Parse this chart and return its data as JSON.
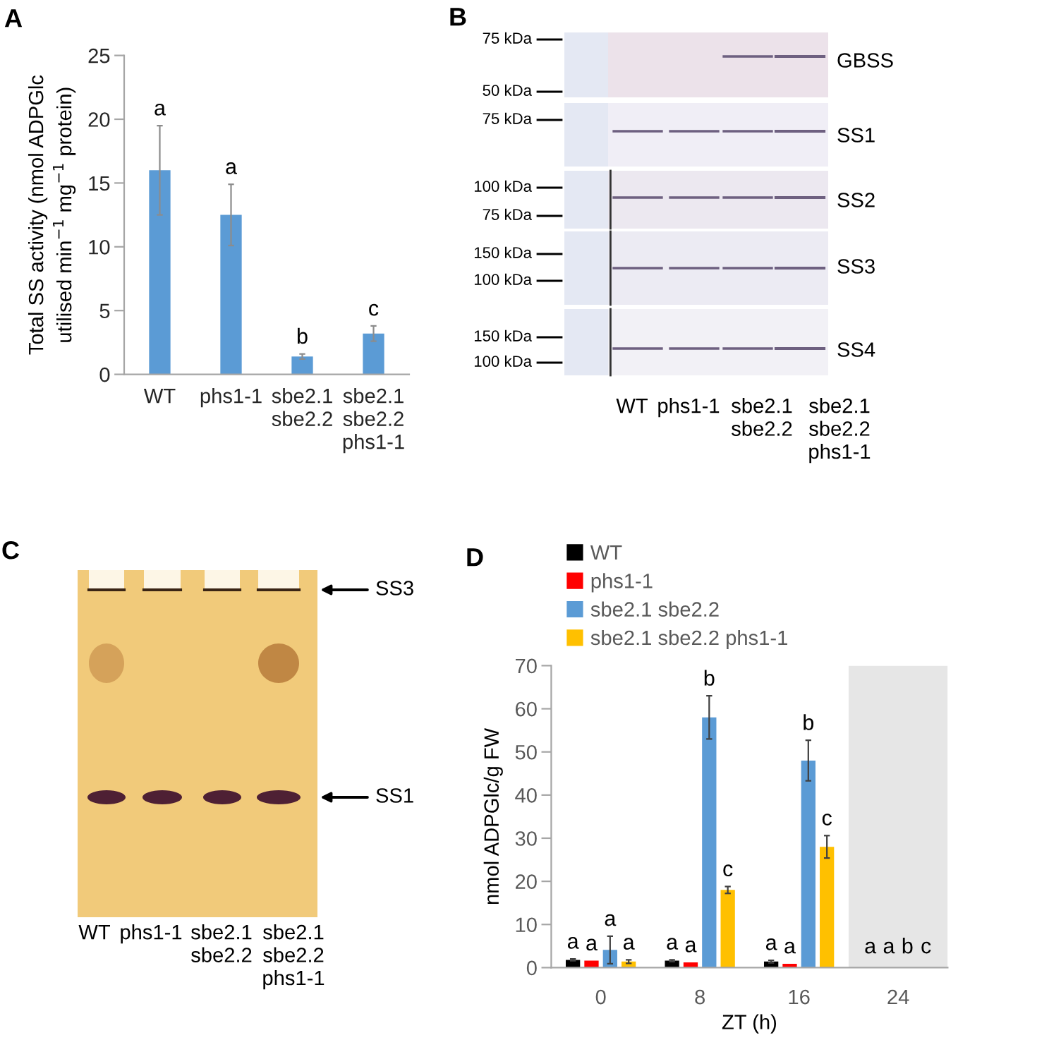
{
  "chart_data": [
    {
      "type": "bar",
      "title": "A",
      "ylabel": "Total SS activity (nmol ADPGlc\nutilised min$^{−1}$ mg$^{−1}$ protein)",
      "categories": [
        "WT",
        "phs1-1",
        "sbe2.1\nsbe2.2",
        "sbe2.1\nsbe2.2\nphs1-1"
      ],
      "values": [
        16,
        12.5,
        1.4,
        3.2
      ],
      "errors": [
        3.5,
        2.4,
        0.2,
        0.6
      ],
      "value_labels": [
        "a",
        "a",
        "b",
        "c"
      ],
      "color": "#5b9bd5",
      "ylim": [
        0,
        25
      ],
      "yticks": [
        0,
        5,
        10,
        15,
        20,
        25
      ]
    },
    {
      "type": "other",
      "title": "B",
      "categories": [
        "WT",
        "phs1-1",
        "sbe2.1\nsbe2.2",
        "sbe2.1\nsbe2.2\nphs1-1"
      ],
      "y2_categories": [
        "GBSS",
        "SS1",
        "SS2",
        "SS3",
        "SS4"
      ],
      "annotations": [
        "75 kDa",
        "50 kDa",
        "75 kDa",
        "100 kDa",
        "75 kDa",
        "150 kDa",
        "100 kDa",
        "150 kDa",
        "100 kDa"
      ]
    },
    {
      "type": "other",
      "title": "C",
      "categories": [
        "WT",
        "phs1-1",
        "sbe2.1\nsbe2.2",
        "sbe2.1\nsbe2.2\nphs1-1"
      ],
      "annotations": [
        "SS3",
        "SS1"
      ]
    },
    {
      "type": "bar",
      "title": "D",
      "xlabel": "ZT (h)",
      "ylabel": "nmol ADPGlc/g FW",
      "categories": [
        "0",
        "8",
        "16",
        "24"
      ],
      "series": [
        {
          "name": "WT",
          "color": "#000000",
          "values": [
            1.8,
            1.6,
            1.4,
            null
          ],
          "errors": [
            0.2,
            0.2,
            0.3,
            null
          ],
          "value_labels": [
            "a",
            "a",
            "a",
            "a"
          ]
        },
        {
          "name": "phs1-1",
          "color": "#ff0000",
          "values": [
            1.6,
            1.2,
            0.9,
            null
          ],
          "value_labels": [
            "a",
            "a",
            "a",
            "a"
          ]
        },
        {
          "name": "sbe2.1 sbe2.2",
          "color": "#5b9bd5",
          "values": [
            4.1,
            58,
            48,
            null
          ],
          "errors": [
            3.2,
            5,
            4.7,
            null
          ],
          "value_labels": [
            "a",
            "b",
            "b",
            "b"
          ]
        },
        {
          "name": "sbe2.1 sbe2.2 phs1-1",
          "color": "#ffc000",
          "values": [
            1.4,
            18,
            28,
            null
          ],
          "errors": [
            0.4,
            0.8,
            2.6,
            null
          ],
          "value_labels": [
            "a",
            "c",
            "c",
            "c"
          ]
        }
      ],
      "ylim": [
        0,
        70
      ],
      "yticks": [
        0,
        10,
        20,
        30,
        40,
        50,
        60,
        70
      ],
      "legend": "top left",
      "bands": [
        {
          "axis": "x",
          "from": "24",
          "to": "24",
          "color": "#e6e6e6"
        }
      ]
    }
  ]
}
